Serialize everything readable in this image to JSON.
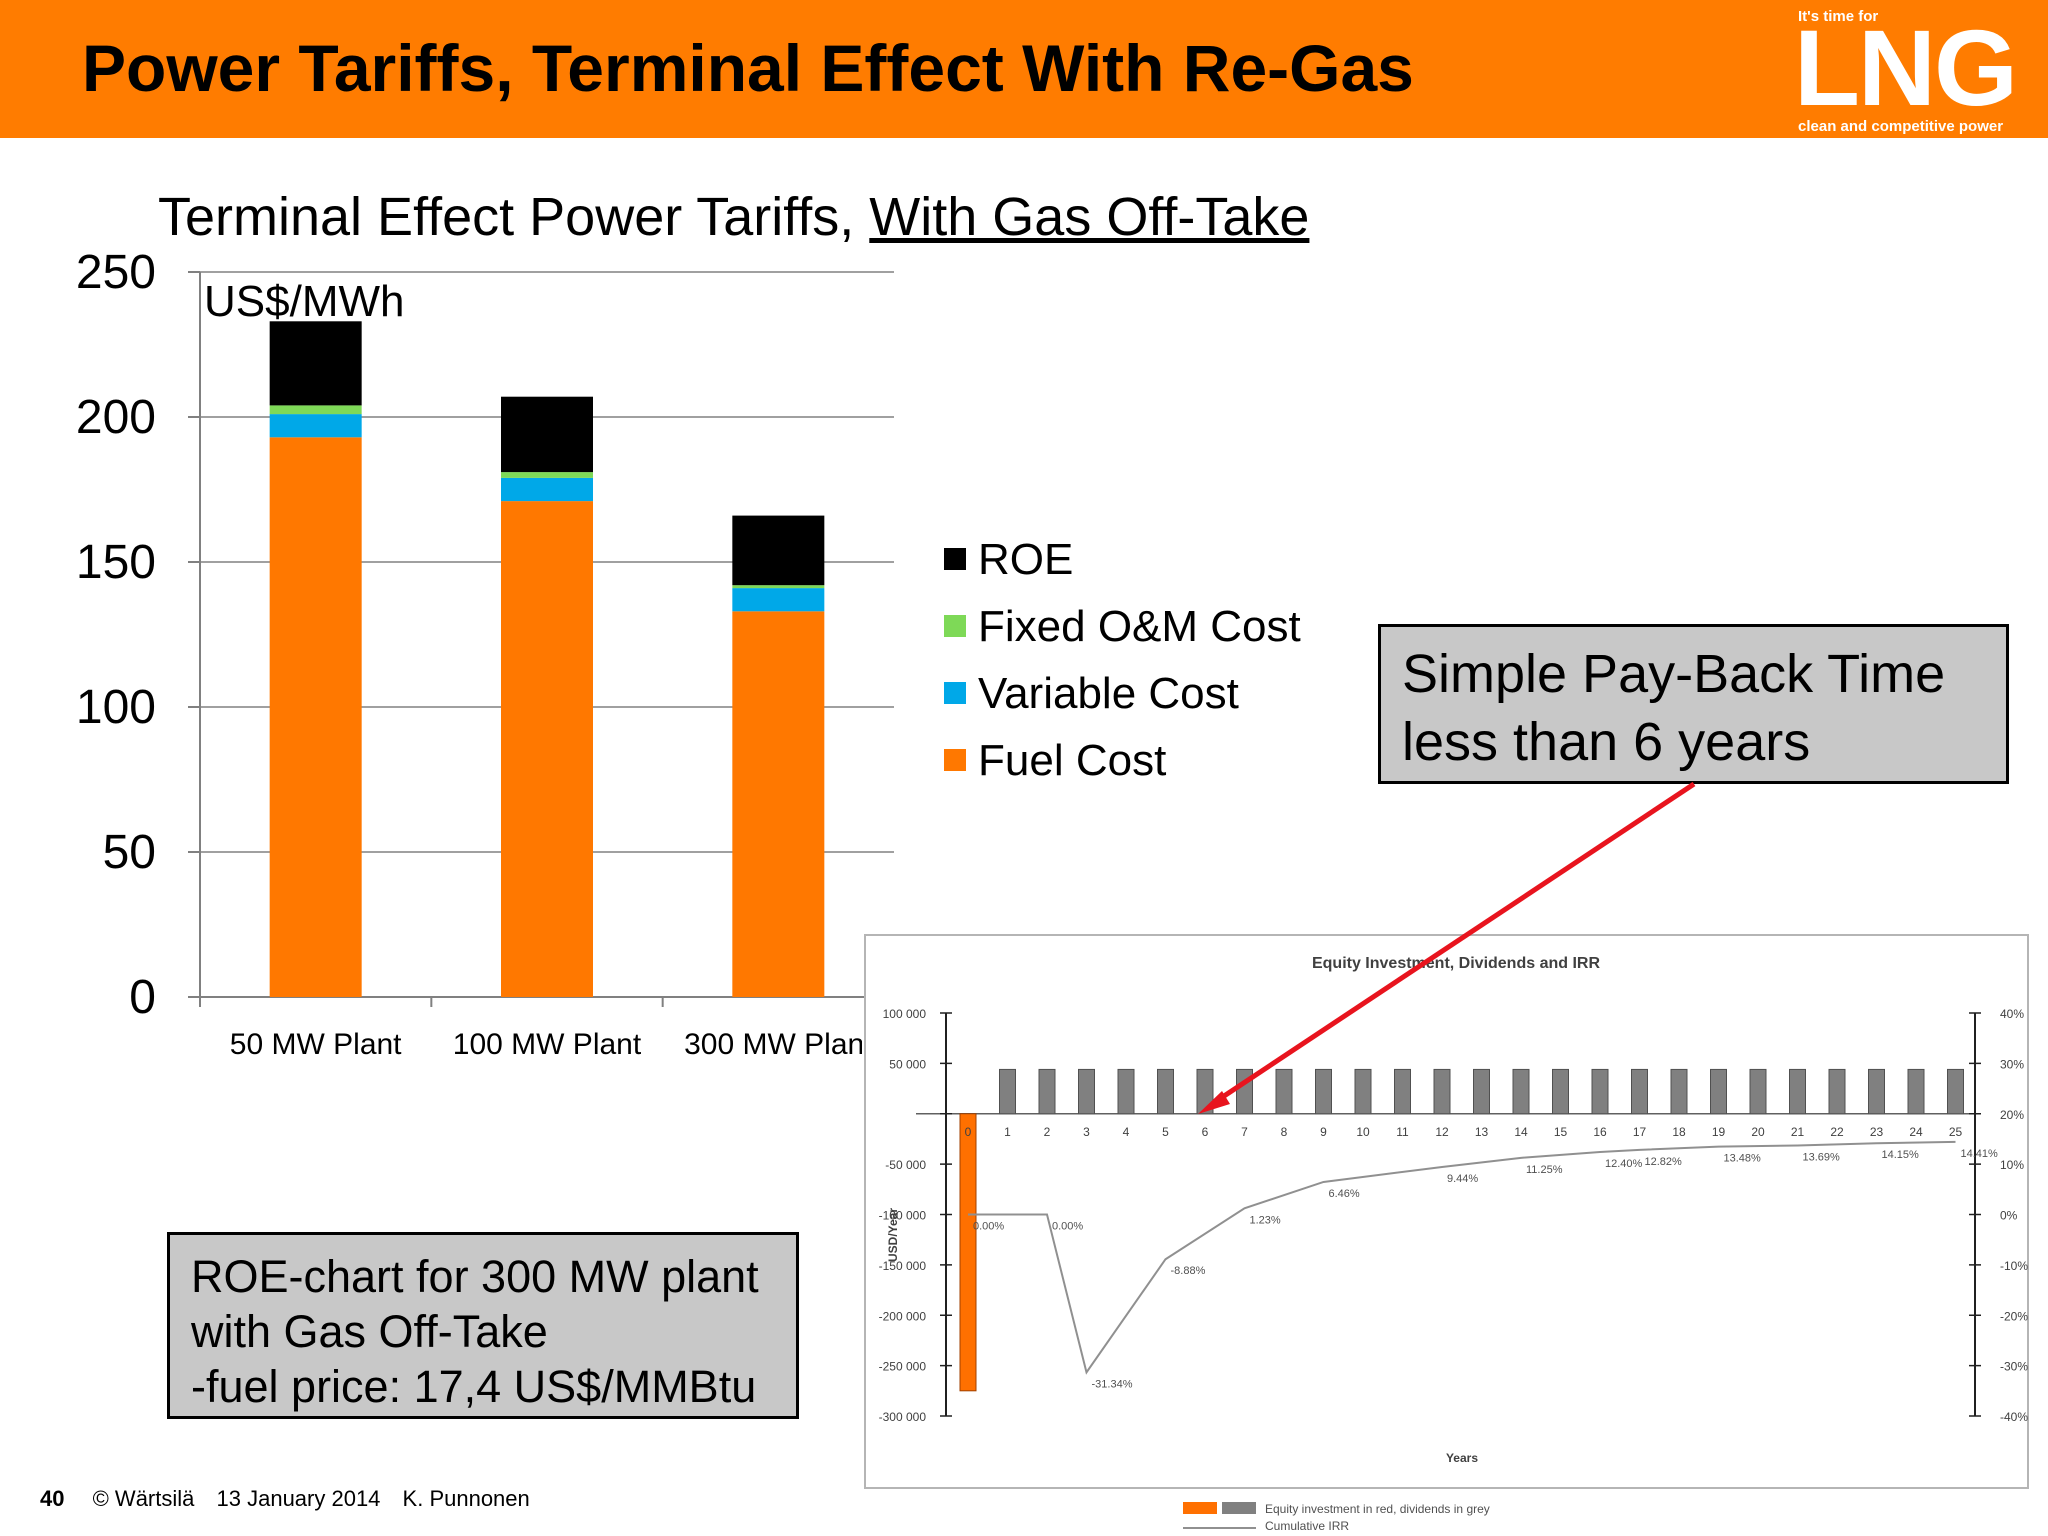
{
  "header": {
    "title": "Power Tariffs, Terminal Effect With Re-Gas"
  },
  "logo": {
    "top": "It's time for",
    "main": "LNG",
    "bottom": "clean and competitive power"
  },
  "chart_title": {
    "main": "Terminal Effect Power Tariffs,",
    "underlined": "With Gas Off-Take"
  },
  "chart_data": [
    {
      "type": "bar",
      "stacked": true,
      "ylabel": "US$/MWh",
      "ylim": [
        0,
        250
      ],
      "yticks": [
        "0",
        "50",
        "100",
        "150",
        "200",
        "250"
      ],
      "categories": [
        "50 MW Plant",
        "100 MW Plant",
        "300 MW Plant"
      ],
      "series": [
        {
          "name": "Fuel Cost",
          "color": "#ff7800",
          "values": [
            193,
            171,
            133
          ]
        },
        {
          "name": "Variable Cost",
          "color": "#00a8e8",
          "values": [
            8,
            8,
            8
          ]
        },
        {
          "name": "Fixed O&M Cost",
          "color": "#7ed957",
          "values": [
            3,
            2,
            1
          ]
        },
        {
          "name": "ROE",
          "color": "#000000",
          "values": [
            29,
            26,
            24
          ]
        }
      ],
      "legend_order": [
        "ROE",
        "Fixed O&M Cost",
        "Variable Cost",
        "Fuel Cost"
      ],
      "legend_position": "right",
      "grid": true
    },
    {
      "type": "bar",
      "title": "Equity Investment, Dividends and IRR",
      "xlabel": "Years",
      "ylabel": "USD/Year",
      "left_ticks": [
        "100 000",
        "50 000",
        "",
        "-50 000",
        "-100 000",
        "-150 000",
        "-200 000",
        "-250 000",
        "-300 000"
      ],
      "right_ticks": [
        "40%",
        "30%",
        "20%",
        "10%",
        "0%",
        "-10%",
        "-20%",
        "-30%",
        "-40%"
      ],
      "years": [
        "0",
        "1",
        "2",
        "3",
        "4",
        "5",
        "6",
        "7",
        "8",
        "9",
        "10",
        "11",
        "12",
        "13",
        "14",
        "15",
        "16",
        "17",
        "18",
        "19",
        "20",
        "21",
        "22",
        "23",
        "24",
        "25"
      ],
      "equity_investment": [
        -275000
      ],
      "dividends": [
        0,
        44000,
        44000,
        44000,
        44000,
        44000,
        44000,
        44000,
        44000,
        44000,
        44000,
        44000,
        44000,
        44000,
        44000,
        44000,
        44000,
        44000,
        44000,
        44000,
        44000,
        44000,
        44000,
        44000,
        44000,
        44000
      ],
      "irr_points": [
        {
          "year": 0,
          "irr": 0.0,
          "label": "0.00%"
        },
        {
          "year": 2,
          "irr": 0.0,
          "label": "0.00%"
        },
        {
          "year": 3,
          "irr": -31.34,
          "label": "-31.34%"
        },
        {
          "year": 5,
          "irr": -8.88,
          "label": "-8.88%"
        },
        {
          "year": 7,
          "irr": 1.23,
          "label": "1.23%"
        },
        {
          "year": 9,
          "irr": 6.46,
          "label": "6.46%"
        },
        {
          "year": 12,
          "irr": 9.44,
          "label": "9.44%"
        },
        {
          "year": 14,
          "irr": 11.25,
          "label": "11.25%"
        },
        {
          "year": 16,
          "irr": 12.4,
          "label": "12.40%"
        },
        {
          "year": 17,
          "irr": 12.82,
          "label": "12.82%"
        },
        {
          "year": 19,
          "irr": 13.48,
          "label": "13.48%"
        },
        {
          "year": 21,
          "irr": 13.69,
          "label": "13.69%"
        },
        {
          "year": 23,
          "irr": 14.15,
          "label": "14.15%"
        },
        {
          "year": 25,
          "irr": 14.41,
          "label": "14.41%"
        }
      ],
      "legend": [
        "Equity investment in red, dividends in grey",
        "Cumulative IRR"
      ],
      "colors": {
        "investment": "#ff7000",
        "dividends": "#808080",
        "irr_line": "#909090"
      }
    }
  ],
  "legend_labels": {
    "roe": "ROE",
    "fom": "Fixed O&M Cost",
    "var": "Variable Cost",
    "fuel": "Fuel Cost"
  },
  "callout": {
    "line1": "Simple Pay-Back Time",
    "line2": "less than 6 years"
  },
  "note": {
    "line1": "ROE-chart for 300 MW plant",
    "line2": "with Gas Off-Take",
    "line3": "-fuel price: 17,4 US$/MMBtu"
  },
  "footer": {
    "page": "40",
    "copyright": "© Wärtsilä",
    "date": "13 January 2014",
    "author": "K. Punnonen"
  },
  "colors": {
    "accent": "#ff7c00",
    "arrow": "#e8141e",
    "box_fill": "#c8c8c8"
  }
}
